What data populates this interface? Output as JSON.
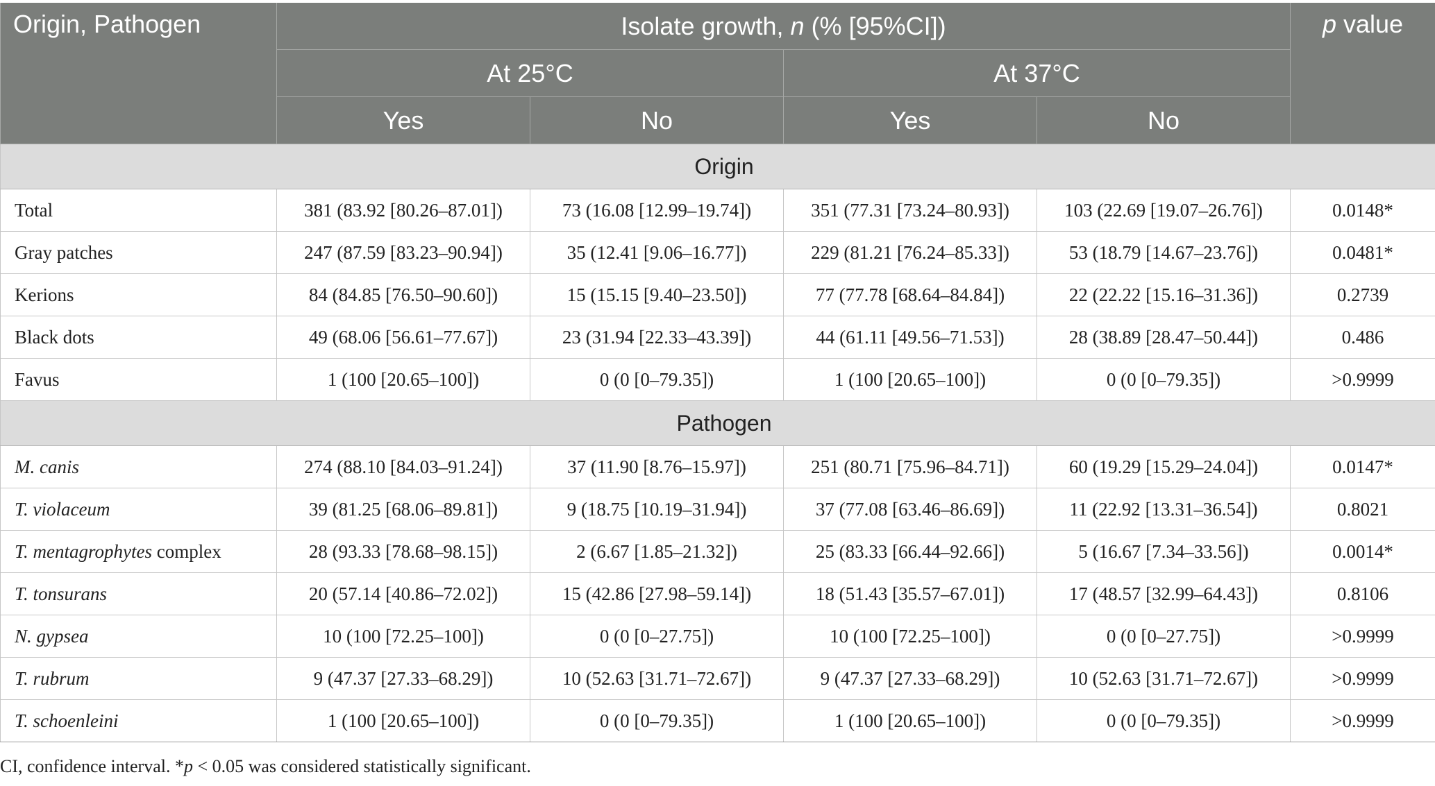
{
  "header": {
    "col0": "Origin, Pathogen",
    "group_label_pre": "Isolate growth, ",
    "group_label_n": "n",
    "group_label_post": " (% [95%CI])",
    "temp1": "At 25°C",
    "temp2": "At 37°C",
    "yes": "Yes",
    "no": "No",
    "p_italic": "p",
    "p_rest": " value"
  },
  "sections": [
    {
      "title": "Origin",
      "rows": [
        {
          "label": "Total",
          "label_rest": "",
          "italic": false,
          "y25": "381 (83.92 [80.26–87.01])",
          "n25": "73 (16.08 [12.99–19.74])",
          "y37": "351 (77.31 [73.24–80.93])",
          "n37": "103 (22.69 [19.07–26.76])",
          "p": "0.0148*"
        },
        {
          "label": "Gray patches",
          "label_rest": "",
          "italic": false,
          "y25": "247 (87.59 [83.23–90.94])",
          "n25": "35 (12.41 [9.06–16.77])",
          "y37": "229 (81.21 [76.24–85.33])",
          "n37": "53 (18.79 [14.67–23.76])",
          "p": "0.0481*"
        },
        {
          "label": "Kerions",
          "label_rest": "",
          "italic": false,
          "y25": "84 (84.85 [76.50–90.60])",
          "n25": "15 (15.15 [9.40–23.50])",
          "y37": "77 (77.78 [68.64–84.84])",
          "n37": "22 (22.22 [15.16–31.36])",
          "p": "0.2739"
        },
        {
          "label": "Black dots",
          "label_rest": "",
          "italic": false,
          "y25": "49 (68.06 [56.61–77.67])",
          "n25": "23 (31.94 [22.33–43.39])",
          "y37": "44 (61.11 [49.56–71.53])",
          "n37": "28 (38.89 [28.47–50.44])",
          "p": "0.486"
        },
        {
          "label": "Favus",
          "label_rest": "",
          "italic": false,
          "y25": "1 (100 [20.65–100])",
          "n25": "0 (0 [0–79.35])",
          "y37": "1 (100 [20.65–100])",
          "n37": "0 (0 [0–79.35])",
          "p": ">0.9999"
        }
      ]
    },
    {
      "title": "Pathogen",
      "rows": [
        {
          "label": "M. canis",
          "label_rest": "",
          "italic": true,
          "y25": "274 (88.10 [84.03–91.24])",
          "n25": "37 (11.90 [8.76–15.97])",
          "y37": "251 (80.71 [75.96–84.71])",
          "n37": "60 (19.29 [15.29–24.04])",
          "p": "0.0147*"
        },
        {
          "label": "T. violaceum",
          "label_rest": "",
          "italic": true,
          "y25": "39 (81.25 [68.06–89.81])",
          "n25": "9 (18.75 [10.19–31.94])",
          "y37": "37 (77.08 [63.46–86.69])",
          "n37": "11 (22.92 [13.31–36.54])",
          "p": "0.8021"
        },
        {
          "label": "T. mentagrophytes",
          "label_rest": " complex",
          "italic": true,
          "y25": "28 (93.33 [78.68–98.15])",
          "n25": "2 (6.67 [1.85–21.32])",
          "y37": "25 (83.33 [66.44–92.66])",
          "n37": "5 (16.67 [7.34–33.56])",
          "p": "0.0014*"
        },
        {
          "label": "T. tonsurans",
          "label_rest": "",
          "italic": true,
          "y25": "20 (57.14 [40.86–72.02])",
          "n25": "15 (42.86 [27.98–59.14])",
          "y37": "18 (51.43 [35.57–67.01])",
          "n37": "17 (48.57 [32.99–64.43])",
          "p": "0.8106"
        },
        {
          "label": "N. gypsea",
          "label_rest": "",
          "italic": true,
          "y25": "10 (100 [72.25–100])",
          "n25": "0 (0 [0–27.75])",
          "y37": "10 (100 [72.25–100])",
          "n37": "0 (0 [0–27.75])",
          "p": ">0.9999"
        },
        {
          "label": "T. rubrum",
          "label_rest": "",
          "italic": true,
          "y25": "9 (47.37 [27.33–68.29])",
          "n25": "10 (52.63 [31.71–72.67])",
          "y37": "9 (47.37 [27.33–68.29])",
          "n37": "10 (52.63 [31.71–72.67])",
          "p": ">0.9999"
        },
        {
          "label": "T. schoenleini",
          "label_rest": "",
          "italic": true,
          "y25": "1 (100 [20.65–100])",
          "n25": "0 (0 [0–79.35])",
          "y37": "1 (100 [20.65–100])",
          "n37": "0 (0 [0–79.35])",
          "p": ">0.9999"
        }
      ]
    }
  ],
  "footnote": {
    "pre": "CI, confidence interval. *",
    "p_italic": "p",
    "post": " < 0.05 was considered statistically significant."
  }
}
